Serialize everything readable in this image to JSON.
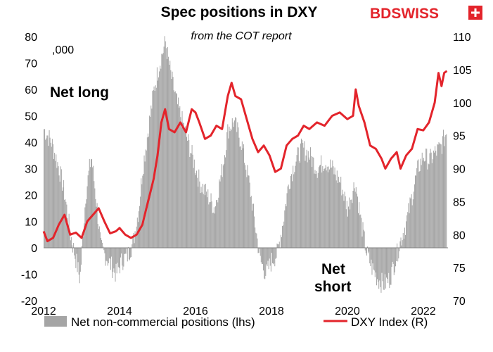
{
  "logo": {
    "text": "BDSWISS"
  },
  "chart_data": {
    "type": "bar+line",
    "title": "Spec positions in DXY",
    "subtitle": "from the COT report",
    "unit_label": ",000",
    "annotations": {
      "net_long": "Net long",
      "net_short_1": "Net",
      "net_short_2": "short"
    },
    "x_ticks": [
      "2012",
      "2014",
      "2016",
      "2018",
      "2020",
      "2022"
    ],
    "x_range": [
      2012.0,
      2022.65
    ],
    "y_left": {
      "range": [
        -20,
        80
      ],
      "ticks": [
        "80",
        "70",
        "60",
        "50",
        "40",
        "30",
        "20",
        "10",
        "0",
        "-10",
        "-20"
      ]
    },
    "y_right": {
      "range": [
        70,
        110
      ],
      "ticks": [
        "110",
        "105",
        "100",
        "95",
        "90",
        "85",
        "80",
        "75",
        "70"
      ]
    },
    "colors": {
      "bars": "#a5a5a5",
      "line": "#e3242b"
    },
    "series": [
      {
        "name": "Net non-commercial positions (lhs)",
        "axis": "left",
        "kind": "bar",
        "points": [
          [
            2012.0,
            45
          ],
          [
            2012.2,
            40
          ],
          [
            2012.4,
            30
          ],
          [
            2012.55,
            20
          ],
          [
            2012.7,
            5
          ],
          [
            2012.85,
            -5
          ],
          [
            2012.95,
            -12
          ],
          [
            2013.1,
            20
          ],
          [
            2013.25,
            35
          ],
          [
            2013.4,
            15
          ],
          [
            2013.5,
            0
          ],
          [
            2013.7,
            -5
          ],
          [
            2013.9,
            -10
          ],
          [
            2014.05,
            -5
          ],
          [
            2014.2,
            -3
          ],
          [
            2014.35,
            2
          ],
          [
            2014.5,
            15
          ],
          [
            2014.6,
            30
          ],
          [
            2014.75,
            45
          ],
          [
            2014.9,
            60
          ],
          [
            2015.05,
            70
          ],
          [
            2015.2,
            78
          ],
          [
            2015.35,
            65
          ],
          [
            2015.5,
            55
          ],
          [
            2015.7,
            45
          ],
          [
            2015.9,
            35
          ],
          [
            2016.1,
            25
          ],
          [
            2016.3,
            20
          ],
          [
            2016.5,
            15
          ],
          [
            2016.7,
            30
          ],
          [
            2016.85,
            45
          ],
          [
            2017.0,
            48
          ],
          [
            2017.2,
            40
          ],
          [
            2017.4,
            25
          ],
          [
            2017.55,
            10
          ],
          [
            2017.7,
            -5
          ],
          [
            2017.85,
            -10
          ],
          [
            2018.0,
            -5
          ],
          [
            2018.15,
            -2
          ],
          [
            2018.3,
            10
          ],
          [
            2018.45,
            25
          ],
          [
            2018.6,
            32
          ],
          [
            2018.8,
            38
          ],
          [
            2019.0,
            35
          ],
          [
            2019.2,
            30
          ],
          [
            2019.4,
            33
          ],
          [
            2019.6,
            30
          ],
          [
            2019.8,
            25
          ],
          [
            2020.0,
            15
          ],
          [
            2020.2,
            25
          ],
          [
            2020.35,
            10
          ],
          [
            2020.5,
            -2
          ],
          [
            2020.65,
            -8
          ],
          [
            2020.8,
            -12
          ],
          [
            2020.95,
            -14
          ],
          [
            2021.1,
            -12
          ],
          [
            2021.25,
            -5
          ],
          [
            2021.4,
            3
          ],
          [
            2021.55,
            10
          ],
          [
            2021.7,
            20
          ],
          [
            2021.85,
            30
          ],
          [
            2022.0,
            35
          ],
          [
            2022.15,
            33
          ],
          [
            2022.3,
            36
          ],
          [
            2022.45,
            38
          ],
          [
            2022.6,
            44
          ]
        ]
      },
      {
        "name": "DXY Index (R)",
        "axis": "right",
        "kind": "line",
        "points": [
          [
            2012.0,
            80.5
          ],
          [
            2012.1,
            79.0
          ],
          [
            2012.25,
            79.5
          ],
          [
            2012.4,
            81.5
          ],
          [
            2012.55,
            83.0
          ],
          [
            2012.7,
            80.0
          ],
          [
            2012.85,
            80.3
          ],
          [
            2013.0,
            79.5
          ],
          [
            2013.15,
            82.0
          ],
          [
            2013.3,
            83.0
          ],
          [
            2013.45,
            84.0
          ],
          [
            2013.6,
            82.0
          ],
          [
            2013.75,
            80.2
          ],
          [
            2013.9,
            80.5
          ],
          [
            2014.0,
            81.0
          ],
          [
            2014.15,
            80.0
          ],
          [
            2014.3,
            79.5
          ],
          [
            2014.45,
            80.0
          ],
          [
            2014.6,
            81.5
          ],
          [
            2014.75,
            85.0
          ],
          [
            2014.9,
            88.5
          ],
          [
            2015.0,
            92.0
          ],
          [
            2015.1,
            97.0
          ],
          [
            2015.2,
            99.0
          ],
          [
            2015.3,
            96.0
          ],
          [
            2015.45,
            95.5
          ],
          [
            2015.6,
            97.0
          ],
          [
            2015.75,
            95.5
          ],
          [
            2015.9,
            99.0
          ],
          [
            2016.0,
            98.5
          ],
          [
            2016.1,
            97.0
          ],
          [
            2016.25,
            94.5
          ],
          [
            2016.4,
            95.0
          ],
          [
            2016.55,
            96.5
          ],
          [
            2016.7,
            96.0
          ],
          [
            2016.85,
            101.0
          ],
          [
            2016.95,
            103.0
          ],
          [
            2017.05,
            101.0
          ],
          [
            2017.2,
            100.5
          ],
          [
            2017.35,
            97.5
          ],
          [
            2017.5,
            94.5
          ],
          [
            2017.65,
            92.5
          ],
          [
            2017.8,
            93.5
          ],
          [
            2017.95,
            92.0
          ],
          [
            2018.1,
            89.5
          ],
          [
            2018.25,
            90.0
          ],
          [
            2018.4,
            93.5
          ],
          [
            2018.55,
            94.5
          ],
          [
            2018.7,
            95.0
          ],
          [
            2018.85,
            96.5
          ],
          [
            2019.0,
            96.0
          ],
          [
            2019.2,
            97.0
          ],
          [
            2019.4,
            96.5
          ],
          [
            2019.6,
            98.0
          ],
          [
            2019.8,
            98.5
          ],
          [
            2020.0,
            97.5
          ],
          [
            2020.15,
            98.0
          ],
          [
            2020.22,
            102.0
          ],
          [
            2020.3,
            99.5
          ],
          [
            2020.45,
            97.0
          ],
          [
            2020.6,
            93.5
          ],
          [
            2020.75,
            93.0
          ],
          [
            2020.9,
            91.5
          ],
          [
            2021.0,
            90.0
          ],
          [
            2021.15,
            91.5
          ],
          [
            2021.3,
            92.5
          ],
          [
            2021.4,
            90.0
          ],
          [
            2021.55,
            92.0
          ],
          [
            2021.7,
            93.0
          ],
          [
            2021.85,
            96.0
          ],
          [
            2022.0,
            95.8
          ],
          [
            2022.15,
            97.0
          ],
          [
            2022.3,
            100.0
          ],
          [
            2022.4,
            104.5
          ],
          [
            2022.48,
            102.5
          ],
          [
            2022.55,
            104.5
          ],
          [
            2022.62,
            104.8
          ]
        ]
      }
    ],
    "legend_position": "bottom",
    "grid": false
  }
}
